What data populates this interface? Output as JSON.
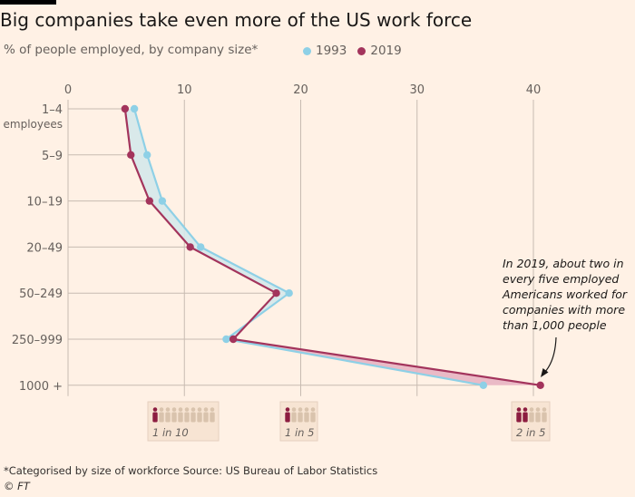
{
  "header": {
    "title": "Big companies take even more of the US work force",
    "subtitle": "% of people employed, by company size*"
  },
  "colors": {
    "y1993": "#8ed0e6",
    "y2019": "#a3345c",
    "fill1993": "#d5e8ea",
    "fill2019": "#e8b4c2",
    "grid": "#c7bbb1"
  },
  "chart_data": {
    "type": "line",
    "title": "Big companies take even more of the US work force",
    "subtitle": "% of people employed, by company size*",
    "xlim": [
      0,
      40
    ],
    "xticks": [
      "0",
      "10",
      "20",
      "30",
      "40"
    ],
    "categories": [
      "1–4",
      "5–9",
      "10–19",
      "20–49",
      "50–249",
      "250–999",
      "1000 +"
    ],
    "category_sublabel": "employees",
    "series": [
      {
        "name": "1993",
        "values": [
          5.7,
          6.8,
          8.1,
          11.4,
          19.0,
          13.6,
          35.7
        ]
      },
      {
        "name": "2019",
        "values": [
          4.9,
          5.4,
          7.0,
          10.5,
          17.9,
          14.2,
          40.6
        ]
      }
    ],
    "annotation": [
      "In 2019, about two in",
      "every five employed",
      "Americans worked for",
      "companies with more",
      "than 1,000 people"
    ],
    "ratio_labels": [
      {
        "text": "1 in 10",
        "x": 10
      },
      {
        "text": "1 in 5",
        "x": 20
      },
      {
        "text": "2 in 5",
        "x": 40
      }
    ]
  },
  "footer": {
    "note": "*Categorised by size of workforce    Source: US Bureau of Labor Statistics",
    "copyright": "© FT"
  }
}
